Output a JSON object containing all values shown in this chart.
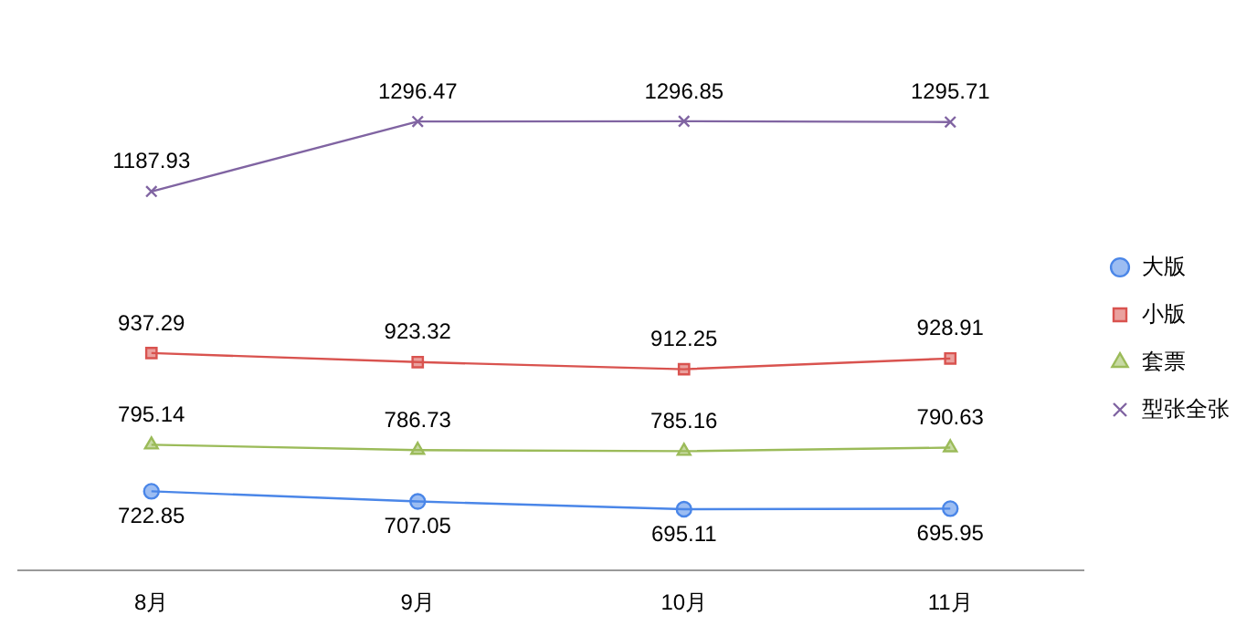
{
  "chart_data": {
    "type": "line",
    "categories": [
      "8月",
      "9月",
      "10月",
      "11月"
    ],
    "series": [
      {
        "name": "大版",
        "color": "#4a86e8",
        "marker": "circle",
        "values": [
          722.85,
          707.05,
          695.11,
          695.95
        ]
      },
      {
        "name": "小版",
        "color": "#d9534f",
        "marker": "square",
        "values": [
          937.29,
          923.32,
          912.25,
          928.91
        ]
      },
      {
        "name": "套票",
        "color": "#9bbb59",
        "marker": "triangle",
        "values": [
          795.14,
          786.73,
          785.16,
          790.63
        ]
      },
      {
        "name": "型张全张",
        "color": "#8064a2",
        "marker": "cross",
        "values": [
          1187.93,
          1296.47,
          1296.85,
          1295.71
        ]
      }
    ],
    "data_labels": true,
    "legend": "right",
    "grid": false
  }
}
